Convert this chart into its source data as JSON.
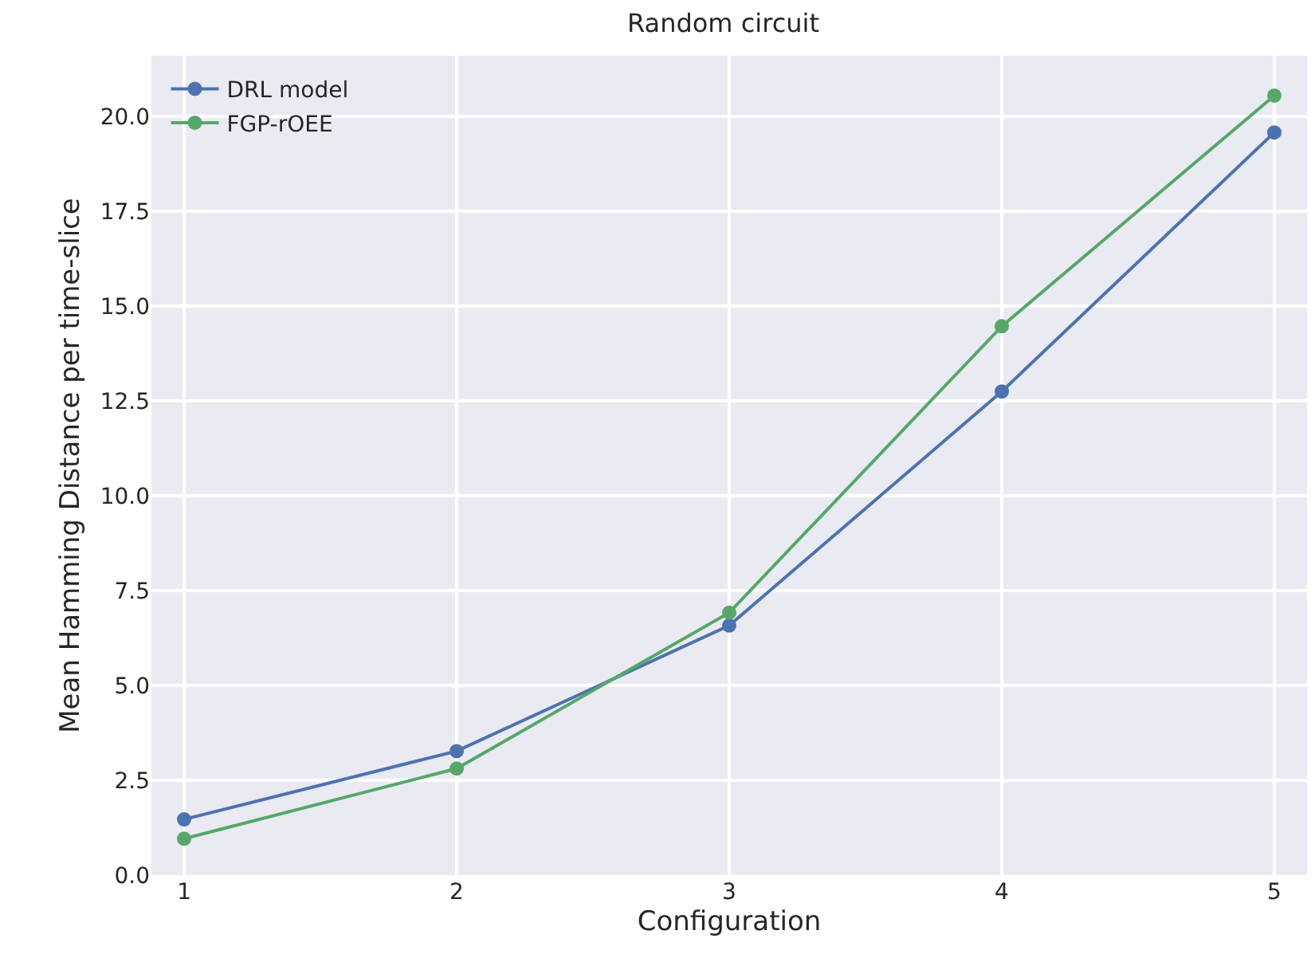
{
  "chart_data": {
    "type": "line",
    "title": "Random circuit",
    "xlabel": "Configuration",
    "ylabel": "Mean Hamming Distance per time-slice",
    "x": [
      1,
      2,
      3,
      4,
      5
    ],
    "series": [
      {
        "name": "DRL model",
        "color": "#4c72b0",
        "values": [
          1.47,
          3.27,
          6.58,
          12.75,
          19.58
        ]
      },
      {
        "name": "FGP-rOEE",
        "color": "#55a868",
        "values": [
          0.96,
          2.81,
          6.92,
          14.47,
          20.55
        ]
      }
    ],
    "xlim": [
      0.88,
      5.12
    ],
    "xticks": [
      1,
      2,
      3,
      4,
      5
    ],
    "ylim": [
      0,
      21.6
    ],
    "yticks": [
      {
        "value": 0,
        "label": "0.0"
      },
      {
        "value": 2.5,
        "label": "2.5"
      },
      {
        "value": 5,
        "label": "5.0"
      },
      {
        "value": 7.5,
        "label": "7.5"
      },
      {
        "value": 10,
        "label": "10.0"
      },
      {
        "value": 12.5,
        "label": "12.5"
      },
      {
        "value": 15,
        "label": "15.0"
      },
      {
        "value": 17.5,
        "label": "17.5"
      },
      {
        "value": 20,
        "label": "20.0"
      }
    ],
    "grid": true,
    "legend": "top left",
    "marker": "circle",
    "line_style": "solid"
  }
}
